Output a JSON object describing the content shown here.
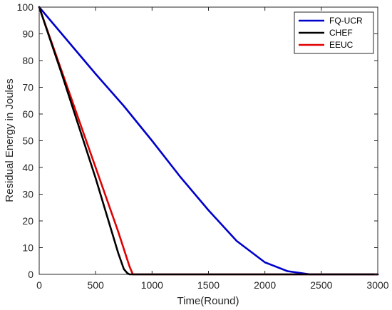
{
  "chart_data": {
    "type": "line",
    "title": "",
    "xlabel": "Time(Round)",
    "ylabel": "Residual Energy in Joules",
    "xlim": [
      0,
      3000
    ],
    "ylim": [
      0,
      100
    ],
    "xticks": [
      0,
      500,
      1000,
      1500,
      2000,
      2500,
      3000
    ],
    "yticks": [
      0,
      10,
      20,
      30,
      40,
      50,
      60,
      70,
      80,
      90,
      100
    ],
    "xtick_labels": [
      "0",
      "500",
      "1000",
      "1500",
      "2000",
      "2500",
      "3000"
    ],
    "ytick_labels": [
      "0",
      "10",
      "20",
      "30",
      "40",
      "50",
      "60",
      "70",
      "80",
      "90",
      "100"
    ],
    "grid": false,
    "legend_position": "top-right",
    "series": [
      {
        "name": "FQ-UCR",
        "color": "#0000cc",
        "x": [
          0,
          250,
          500,
          750,
          1000,
          1250,
          1500,
          1750,
          2000,
          2200,
          2400,
          2600,
          3000
        ],
        "y": [
          100,
          87.5,
          75,
          63,
          50,
          36.5,
          24,
          12.5,
          4.5,
          1.2,
          0,
          0,
          0
        ]
      },
      {
        "name": "CHEF",
        "color": "#000000",
        "x": [
          0,
          100,
          200,
          300,
          400,
          500,
          600,
          700,
          750,
          780,
          800,
          3000
        ],
        "y": [
          100,
          87.5,
          75,
          62,
          49,
          36,
          22,
          8,
          2,
          0.5,
          0,
          0
        ]
      },
      {
        "name": "EEUC",
        "color": "#e00000",
        "x": [
          0,
          200,
          400,
          600,
          700,
          800,
          830,
          3000
        ],
        "y": [
          100,
          76,
          52,
          28,
          16,
          3,
          0,
          0
        ]
      }
    ]
  }
}
